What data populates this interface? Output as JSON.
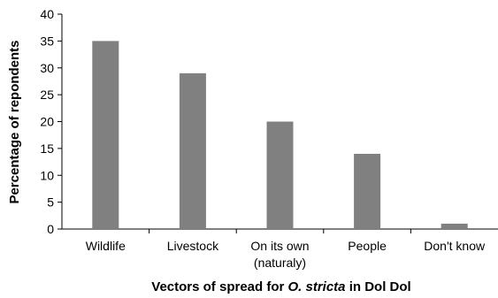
{
  "chart_data": {
    "type": "bar",
    "categories": [
      [
        "Wildlife"
      ],
      [
        "Livestock"
      ],
      [
        "On its own",
        "(naturaly)"
      ],
      [
        "People"
      ],
      [
        "Don't know"
      ]
    ],
    "values": [
      35,
      29,
      20,
      14,
      1
    ],
    "ylabel": "Percentage of repondents",
    "xlabel_parts": [
      {
        "text": "Vectors of spread for ",
        "italic": false
      },
      {
        "text": "O. stricta",
        "italic": true
      },
      {
        "text": " in Dol Dol",
        "italic": false
      }
    ],
    "ylim": [
      0,
      40
    ],
    "yticks": [
      0,
      5,
      10,
      15,
      20,
      25,
      30,
      35,
      40
    ],
    "bar_color": "#808080",
    "grid": false,
    "legend": "none"
  }
}
